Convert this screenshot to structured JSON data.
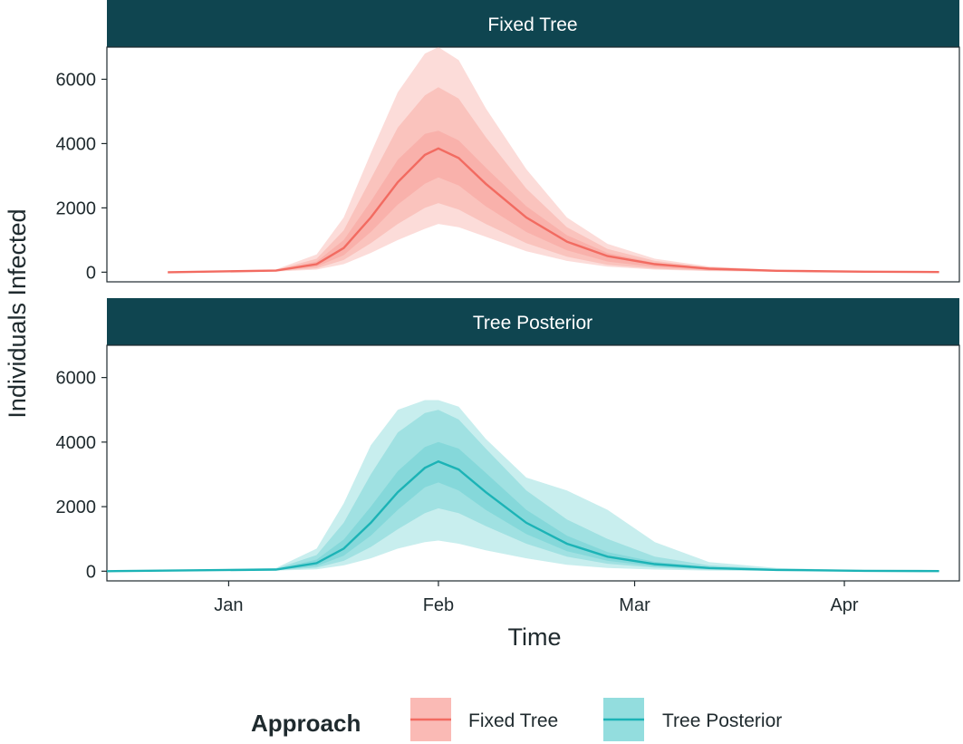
{
  "chart_data": {
    "type": "line",
    "ylabel": "Individuals Infected",
    "xlabel": "Time",
    "x_ticks": [
      "Jan",
      "Feb",
      "Mar",
      "Apr"
    ],
    "y_ticks": [
      "0",
      "2000",
      "4000",
      "6000"
    ],
    "ylim": [
      -300,
      7000
    ],
    "xlim": [
      "Dec 14",
      "Apr 18"
    ],
    "grid": false,
    "legend": {
      "title": "Approach",
      "position": "bottom",
      "entries": [
        "Fixed Tree",
        "Tree Posterior"
      ]
    },
    "panels": [
      {
        "strip": "Fixed Tree",
        "color": "#f26b61",
        "band_color": "#f8a39c",
        "x": [
          "Dec 23",
          "Jan 8",
          "Jan 14",
          "Jan 18",
          "Jan 22",
          "Jan 26",
          "Jan 30",
          "Feb 1",
          "Feb 4",
          "Feb 8",
          "Feb 14",
          "Feb 20",
          "Feb 26",
          "Mar 4",
          "Mar 12",
          "Mar 22",
          "Apr 4",
          "Apr 15"
        ],
        "median": [
          0,
          50,
          250,
          750,
          1700,
          2800,
          3650,
          3850,
          3550,
          2750,
          1700,
          950,
          500,
          250,
          110,
          45,
          15,
          5
        ],
        "bands": [
          {
            "lower": [
              0,
              20,
              80,
              250,
              600,
              1000,
              1350,
              1500,
              1400,
              1100,
              650,
              350,
              170,
              80,
              35,
              15,
              5,
              0
            ],
            "upper": [
              0,
              90,
              550,
              1700,
              3700,
              5600,
              6800,
              7000,
              6600,
              5100,
              3200,
              1700,
              880,
              420,
              180,
              75,
              25,
              8
            ]
          },
          {
            "lower": [
              0,
              30,
              120,
              380,
              900,
              1500,
              2000,
              2150,
              1950,
              1500,
              900,
              480,
              230,
              110,
              45,
              18,
              6,
              2
            ],
            "upper": [
              0,
              75,
              420,
              1300,
              2900,
              4500,
              5500,
              5750,
              5400,
              4200,
              2600,
              1400,
              720,
              350,
              150,
              60,
              20,
              6
            ]
          },
          {
            "lower": [
              0,
              40,
              170,
              530,
              1250,
              2100,
              2750,
              2950,
              2700,
              2050,
              1250,
              680,
              330,
              160,
              65,
              25,
              8,
              3
            ],
            "upper": [
              0,
              60,
              330,
              1000,
              2200,
              3500,
              4300,
              4400,
              4100,
              3250,
              2050,
              1150,
              600,
              290,
              125,
              50,
              16,
              5
            ]
          }
        ]
      },
      {
        "strip": "Tree Posterior",
        "color": "#1cb3b6",
        "band_color": "#6fd1d3",
        "x": [
          "Dec 14",
          "Jan 8",
          "Jan 14",
          "Jan 18",
          "Jan 22",
          "Jan 26",
          "Jan 30",
          "Feb 1",
          "Feb 4",
          "Feb 8",
          "Feb 14",
          "Feb 20",
          "Feb 26",
          "Mar 4",
          "Mar 12",
          "Mar 22",
          "Apr 4",
          "Apr 15"
        ],
        "median": [
          0,
          50,
          250,
          700,
          1500,
          2450,
          3200,
          3400,
          3150,
          2450,
          1500,
          850,
          450,
          220,
          100,
          40,
          12,
          4
        ],
        "bands": [
          {
            "lower": [
              0,
              20,
              60,
              180,
              400,
              700,
              900,
              950,
              850,
              650,
              400,
              200,
              100,
              50,
              20,
              8,
              3,
              0
            ],
            "upper": [
              0,
              100,
              700,
              2100,
              3900,
              5000,
              5300,
              5300,
              5100,
              4100,
              2900,
              2500,
              1900,
              900,
              280,
              100,
              30,
              10
            ]
          },
          {
            "lower": [
              0,
              30,
              110,
              320,
              750,
              1300,
              1800,
              1950,
              1800,
              1400,
              850,
              450,
              230,
              110,
              45,
              18,
              6,
              2
            ],
            "upper": [
              0,
              80,
              500,
              1500,
              3000,
              4300,
              4900,
              5000,
              4700,
              3800,
              2500,
              1600,
              1000,
              450,
              180,
              70,
              20,
              6
            ]
          },
          {
            "lower": [
              0,
              40,
              160,
              480,
              1100,
              1900,
              2600,
              2750,
              2500,
              1900,
              1150,
              620,
              320,
              150,
              62,
              24,
              8,
              3
            ],
            "upper": [
              0,
              62,
              360,
              980,
              2000,
              3100,
              3850,
              4000,
              3800,
              3050,
              1900,
              1100,
              590,
              290,
              130,
              52,
              16,
              5
            ]
          }
        ]
      }
    ]
  }
}
